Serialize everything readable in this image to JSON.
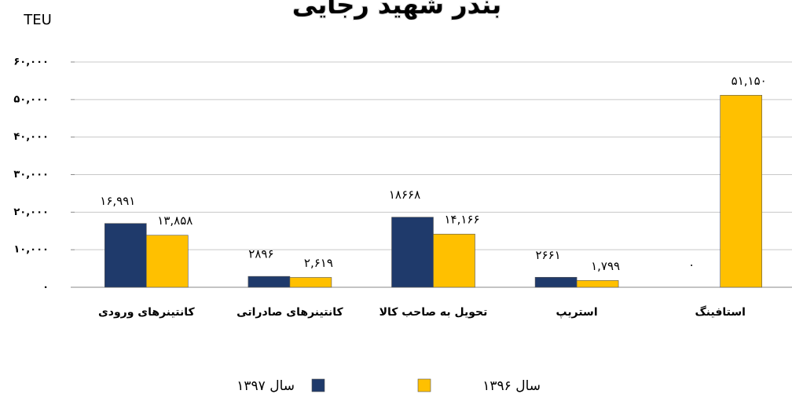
{
  "chart_data": {
    "type": "bar",
    "title": "بندر شهید رجایی",
    "y_label": "TEU",
    "categories": [
      "کانتینرهای ورودی",
      "کانتینرهای صادراتی",
      "تحویل به صاحب کالا",
      "استریپ",
      "استافینگ"
    ],
    "series": [
      {
        "name": "سال ۱۳۹۷",
        "color": "#1f3a6b",
        "values": [
          16991,
          2896,
          18668,
          2661,
          0
        ],
        "value_labels": [
          "۱۶,۹۹۱",
          "۲۸۹۶",
          "۱۸۶۶۸",
          "۲۶۶۱",
          "۰"
        ]
      },
      {
        "name": "سال ۱۳۹۶",
        "color": "#ffc000",
        "values": [
          13858,
          2619,
          14166,
          1799,
          51150
        ],
        "value_labels": [
          "۱۳,۸۵۸",
          "۲,۶۱۹",
          "۱۴,۱۶۶",
          "۱,۷۹۹",
          "۵۱,۱۵۰"
        ]
      }
    ],
    "ylim": [
      0,
      60000
    ],
    "yticks": [
      {
        "value": 0,
        "label": "۰"
      },
      {
        "value": 10000,
        "label": "۱۰,۰۰۰"
      },
      {
        "value": 20000,
        "label": "۲۰,۰۰۰"
      },
      {
        "value": 30000,
        "label": "۳۰,۰۰۰"
      },
      {
        "value": 40000,
        "label": "۴۰,۰۰۰"
      },
      {
        "value": 50000,
        "label": "۵۰,۰۰۰"
      },
      {
        "value": 60000,
        "label": "۶۰,۰۰۰"
      }
    ],
    "grid": true
  }
}
